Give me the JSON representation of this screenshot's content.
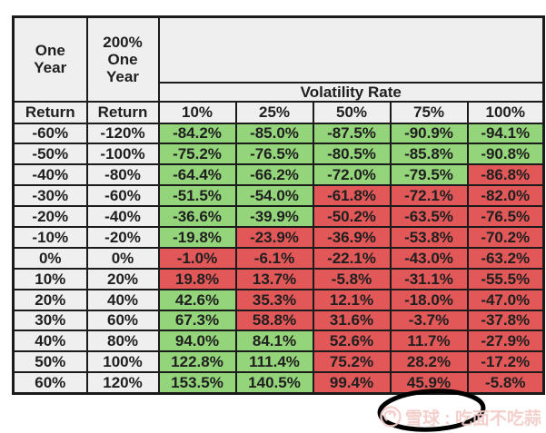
{
  "colors": {
    "green": "#94d47a",
    "red": "#e25858",
    "header_bg": "#efefef",
    "border": "#1b1b1b",
    "text": "#1f1f1f",
    "watermark": "#f2cdc8",
    "annotation": "#000000"
  },
  "chart_data": {
    "type": "table",
    "header": {
      "one_year": "One\nYear",
      "leveraged": "200%\nOne\nYear",
      "return1": "Return",
      "return2": "Return",
      "group_label": "Volatility Rate",
      "volatility_columns": [
        "10%",
        "25%",
        "50%",
        "75%",
        "100%"
      ]
    },
    "rows": [
      {
        "one_year_return": "-60%",
        "leveraged_return": "-120%",
        "values": [
          "-84.2%",
          "-85.0%",
          "-87.5%",
          "-90.9%",
          "-94.1%"
        ],
        "cell_colors": [
          "green",
          "green",
          "green",
          "green",
          "green"
        ]
      },
      {
        "one_year_return": "-50%",
        "leveraged_return": "-100%",
        "values": [
          "-75.2%",
          "-76.5%",
          "-80.5%",
          "-85.8%",
          "-90.8%"
        ],
        "cell_colors": [
          "green",
          "green",
          "green",
          "green",
          "green"
        ]
      },
      {
        "one_year_return": "-40%",
        "leveraged_return": "-80%",
        "values": [
          "-64.4%",
          "-66.2%",
          "-72.0%",
          "-79.5%",
          "-86.8%"
        ],
        "cell_colors": [
          "green",
          "green",
          "green",
          "green",
          "red"
        ]
      },
      {
        "one_year_return": "-30%",
        "leveraged_return": "-60%",
        "values": [
          "-51.5%",
          "-54.0%",
          "-61.8%",
          "-72.1%",
          "-82.0%"
        ],
        "cell_colors": [
          "green",
          "green",
          "red",
          "red",
          "red"
        ]
      },
      {
        "one_year_return": "-20%",
        "leveraged_return": "-40%",
        "values": [
          "-36.6%",
          "-39.9%",
          "-50.2%",
          "-63.5%",
          "-76.5%"
        ],
        "cell_colors": [
          "green",
          "green",
          "red",
          "red",
          "red"
        ]
      },
      {
        "one_year_return": "-10%",
        "leveraged_return": "-20%",
        "values": [
          "-19.8%",
          "-23.9%",
          "-36.9%",
          "-53.8%",
          "-70.2%"
        ],
        "cell_colors": [
          "green",
          "red",
          "red",
          "red",
          "red"
        ]
      },
      {
        "one_year_return": "0%",
        "leveraged_return": "0%",
        "values": [
          "-1.0%",
          "-6.1%",
          "-22.1%",
          "-43.0%",
          "-63.2%"
        ],
        "cell_colors": [
          "red",
          "red",
          "red",
          "red",
          "red"
        ]
      },
      {
        "one_year_return": "10%",
        "leveraged_return": "20%",
        "values": [
          "19.8%",
          "13.7%",
          "-5.8%",
          "-31.1%",
          "-55.5%"
        ],
        "cell_colors": [
          "red",
          "red",
          "red",
          "red",
          "red"
        ]
      },
      {
        "one_year_return": "20%",
        "leveraged_return": "40%",
        "values": [
          "42.6%",
          "35.3%",
          "12.1%",
          "-18.0%",
          "-47.0%"
        ],
        "cell_colors": [
          "green",
          "red",
          "red",
          "red",
          "red"
        ]
      },
      {
        "one_year_return": "30%",
        "leveraged_return": "60%",
        "values": [
          "67.3%",
          "58.8%",
          "31.6%",
          "-3.7%",
          "-37.8%"
        ],
        "cell_colors": [
          "green",
          "red",
          "red",
          "red",
          "red"
        ]
      },
      {
        "one_year_return": "40%",
        "leveraged_return": "80%",
        "values": [
          "94.0%",
          "84.1%",
          "52.6%",
          "11.7%",
          "-27.9%"
        ],
        "cell_colors": [
          "green",
          "green",
          "red",
          "red",
          "red"
        ]
      },
      {
        "one_year_return": "50%",
        "leveraged_return": "100%",
        "values": [
          "122.8%",
          "111.4%",
          "75.2%",
          "28.2%",
          "-17.2%"
        ],
        "cell_colors": [
          "green",
          "green",
          "red",
          "red",
          "red"
        ]
      },
      {
        "one_year_return": "60%",
        "leveraged_return": "120%",
        "values": [
          "153.5%",
          "140.5%",
          "99.4%",
          "45.9%",
          "-5.8%"
        ],
        "cell_colors": [
          "green",
          "green",
          "red",
          "red",
          "red"
        ]
      }
    ]
  },
  "annotation": {
    "shape": "hand-drawn-ellipse",
    "circled_value": "45.9%"
  },
  "watermark": {
    "logo": "xueqiu-snowball-logo",
    "text": "雪球 : 吃面不吃蒜"
  }
}
